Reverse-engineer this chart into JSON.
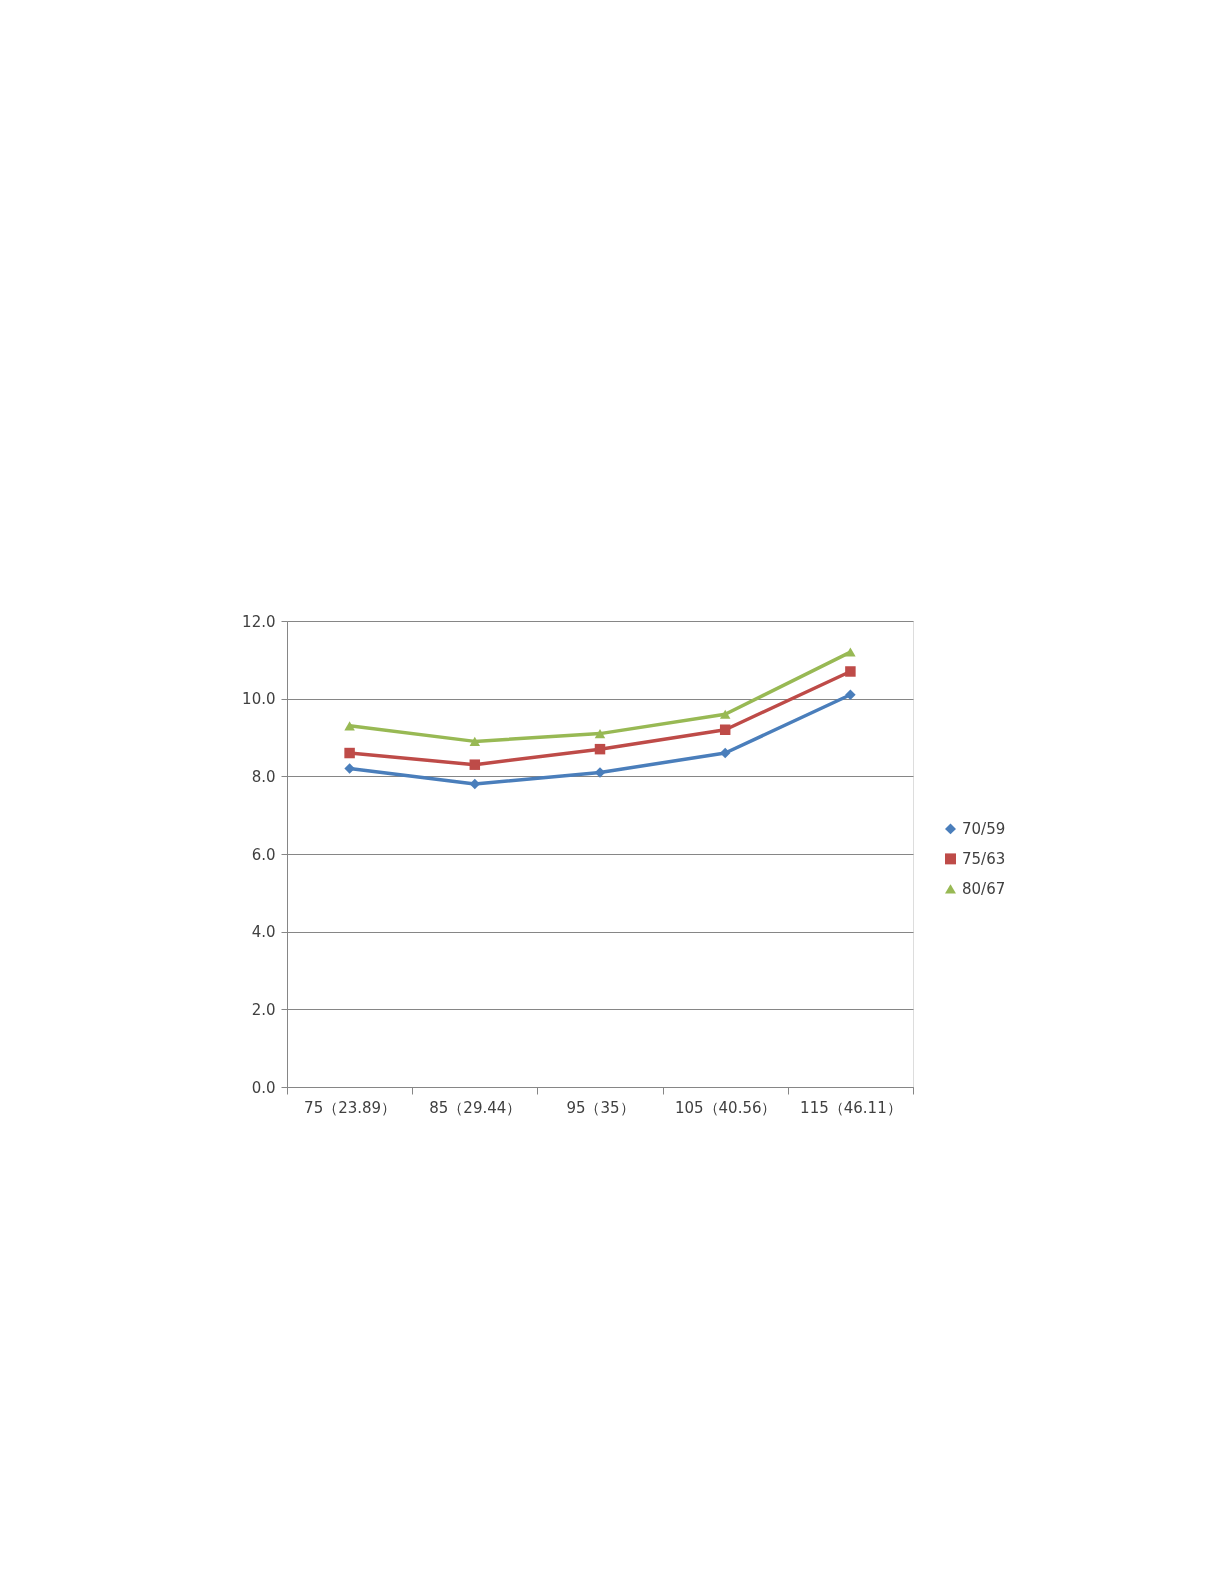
{
  "chart_data": {
    "type": "line",
    "categories": [
      "75（23.89）",
      "85（29.44）",
      "95（35）",
      "105（40.56）",
      "115（46.11）"
    ],
    "series": [
      {
        "name": "70/59",
        "color": "#4a7ebb",
        "marker": "diamond",
        "values": [
          8.2,
          7.8,
          8.1,
          8.6,
          10.1
        ]
      },
      {
        "name": "75/63",
        "color": "#be4b48",
        "marker": "square",
        "values": [
          8.6,
          8.3,
          8.7,
          9.2,
          10.7
        ]
      },
      {
        "name": "80/67",
        "color": "#98b954",
        "marker": "triangle",
        "values": [
          9.3,
          8.9,
          9.1,
          9.6,
          11.2
        ]
      }
    ],
    "ylim": [
      0,
      12
    ],
    "yticks": [
      {
        "value": 0,
        "label": "0.0"
      },
      {
        "value": 2,
        "label": "2.0"
      },
      {
        "value": 4,
        "label": "4.0"
      },
      {
        "value": 6,
        "label": "6.0"
      },
      {
        "value": 8,
        "label": "8.0"
      },
      {
        "value": 10,
        "label": "10.0"
      },
      {
        "value": 12,
        "label": "12.0"
      }
    ],
    "grid": "y",
    "legend": "right",
    "line_style": "solid"
  }
}
